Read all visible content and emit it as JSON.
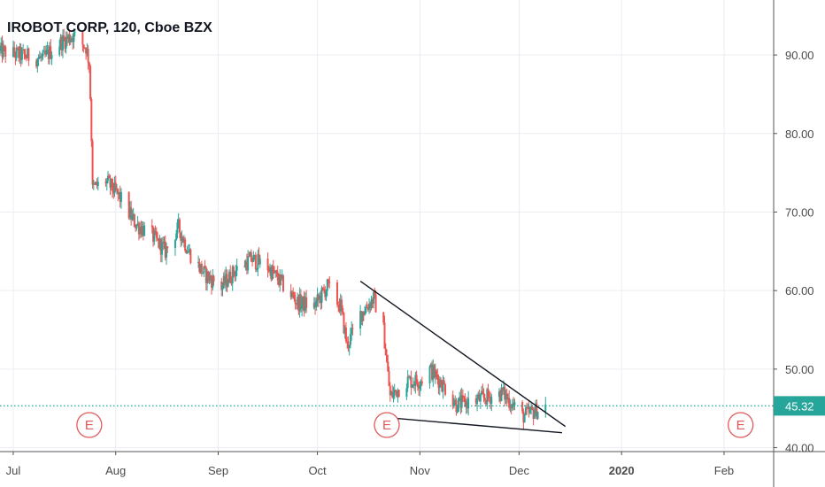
{
  "title": "IROBOT CORP, 120, Cboe BZX",
  "colors": {
    "up": "#26a69a",
    "down": "#ef5350",
    "grid": "#e9edf2",
    "axis": "#555555",
    "last_price_line": "#26a69a",
    "trendline": "#131722",
    "earnings": "#e05a5a"
  },
  "last_price_label": "45.32",
  "earnings_markers": [
    {
      "date": "2019-07-24",
      "label": "E"
    },
    {
      "date": "2019-10-22",
      "label": "E"
    },
    {
      "date": "2020-02-06",
      "label": "E"
    }
  ],
  "chart_data": {
    "type": "candlestick",
    "title": "IROBOT CORP, 120, Cboe BZX",
    "x_start": "2019-06-27",
    "x_end": "2020-02-16",
    "x_ticks": [
      {
        "date": "2019-07-01",
        "label": "Jul"
      },
      {
        "date": "2019-08-01",
        "label": "Aug"
      },
      {
        "date": "2019-09-01",
        "label": "Sep"
      },
      {
        "date": "2019-10-01",
        "label": "Oct"
      },
      {
        "date": "2019-11-01",
        "label": "Nov"
      },
      {
        "date": "2019-12-01",
        "label": "Dec"
      },
      {
        "date": "2020-01-01",
        "label": "2020"
      },
      {
        "date": "2020-02-01",
        "label": "Feb"
      }
    ],
    "y_ticks": [
      40,
      50,
      60,
      70,
      80,
      90
    ],
    "y_tick_labels": [
      "40.00",
      "50.00",
      "60.00",
      "70.00",
      "80.00",
      "90.00"
    ],
    "ylim": [
      39.5,
      97
    ],
    "last_price": 45.32,
    "path": [
      [
        "2019-06-27",
        90.5
      ],
      [
        "2019-07-03",
        90.0
      ],
      [
        "2019-07-10",
        89.5
      ],
      [
        "2019-07-15",
        91.5
      ],
      [
        "2019-07-19",
        92.5
      ],
      [
        "2019-07-23",
        91.0
      ],
      [
        "2019-07-24",
        89.0
      ],
      [
        "2019-07-25",
        73.0
      ],
      [
        "2019-07-29",
        74.0
      ],
      [
        "2019-08-02",
        72.0
      ],
      [
        "2019-08-07",
        68.5
      ],
      [
        "2019-08-12",
        67.0
      ],
      [
        "2019-08-16",
        65.0
      ],
      [
        "2019-08-20",
        68.0
      ],
      [
        "2019-08-23",
        65.0
      ],
      [
        "2019-08-28",
        62.0
      ],
      [
        "2019-09-02",
        60.5
      ],
      [
        "2019-09-06",
        62.5
      ],
      [
        "2019-09-11",
        64.0
      ],
      [
        "2019-09-16",
        63.0
      ],
      [
        "2019-09-20",
        61.0
      ],
      [
        "2019-09-25",
        58.5
      ],
      [
        "2019-09-30",
        58.0
      ],
      [
        "2019-10-04",
        60.5
      ],
      [
        "2019-10-08",
        58.0
      ],
      [
        "2019-10-10",
        53.0
      ],
      [
        "2019-10-14",
        57.0
      ],
      [
        "2019-10-18",
        59.0
      ],
      [
        "2019-10-21",
        55.0
      ],
      [
        "2019-10-23",
        46.5
      ],
      [
        "2019-10-28",
        48.5
      ],
      [
        "2019-11-01",
        48.5
      ],
      [
        "2019-11-04",
        50.0
      ],
      [
        "2019-11-08",
        48.0
      ],
      [
        "2019-11-12",
        45.5
      ],
      [
        "2019-11-18",
        46.0
      ],
      [
        "2019-11-22",
        46.5
      ],
      [
        "2019-11-26",
        47.0
      ],
      [
        "2019-12-02",
        44.0
      ],
      [
        "2019-12-05",
        44.5
      ],
      [
        "2019-12-09",
        45.3
      ]
    ],
    "trendlines": [
      {
        "name": "upper",
        "from": [
          "2019-10-14",
          61.2
        ],
        "to": [
          "2019-12-15",
          42.7
        ]
      },
      {
        "name": "lower",
        "from": [
          "2019-10-20",
          43.9
        ],
        "to": [
          "2019-12-14",
          41.9
        ]
      }
    ]
  }
}
